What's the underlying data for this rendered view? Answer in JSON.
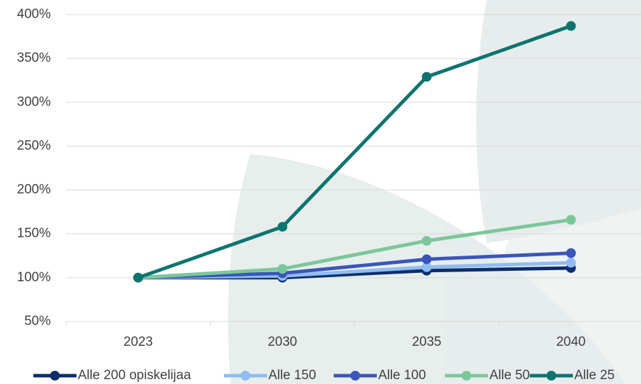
{
  "chart_data": {
    "type": "line",
    "categories": [
      "2023",
      "2030",
      "2035",
      "2040"
    ],
    "series": [
      {
        "name": "Alle 200 opiskelijaa",
        "color": "#0d2d6b",
        "values": [
          100,
          100,
          108,
          111
        ]
      },
      {
        "name": "Alle 150",
        "color": "#8fbcf2",
        "values": [
          100,
          102,
          112,
          117
        ]
      },
      {
        "name": "Alle 100",
        "color": "#3a56b8",
        "values": [
          100,
          105,
          121,
          128
        ]
      },
      {
        "name": "Alle 50",
        "color": "#7cc79a",
        "values": [
          100,
          110,
          142,
          166
        ]
      },
      {
        "name": "Alle 25",
        "color": "#0e7470",
        "values": [
          100,
          158,
          329,
          387
        ]
      }
    ],
    "ylim": [
      50,
      400
    ],
    "yticks": [
      {
        "value": 50,
        "label": "50%"
      },
      {
        "value": 100,
        "label": "100%"
      },
      {
        "value": 150,
        "label": "150%"
      },
      {
        "value": 200,
        "label": "200%"
      },
      {
        "value": 250,
        "label": "250%"
      },
      {
        "value": 300,
        "label": "300%"
      },
      {
        "value": 350,
        "label": "350%"
      },
      {
        "value": 400,
        "label": "400%"
      }
    ],
    "grid": true,
    "legend": "bottom"
  }
}
